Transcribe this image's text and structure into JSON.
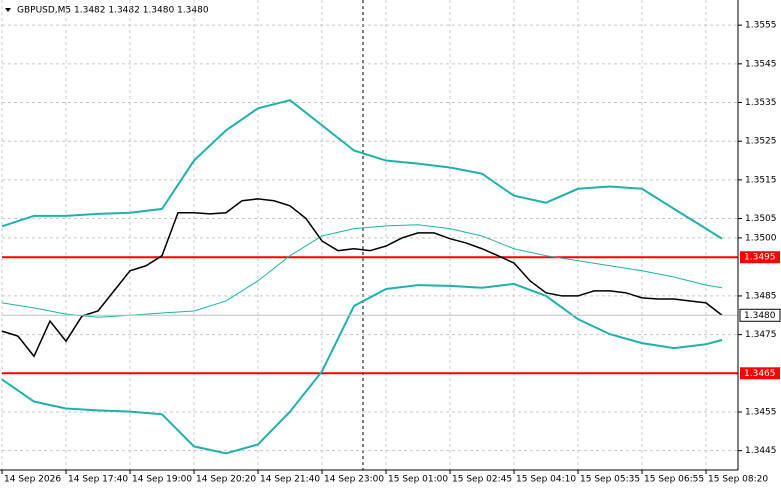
{
  "chart_data": {
    "type": "line",
    "title": "GBPUSD,M5  1.3482 1.3482 1.3480 1.3480",
    "xlim": [
      0,
      230
    ],
    "ylim": [
      1.344,
      1.35615
    ],
    "grid": true,
    "xticks": [
      {
        "value": 0,
        "label": "14 Sep 2026"
      },
      {
        "value": 20,
        "label": "14 Sep 17:40"
      },
      {
        "value": 40,
        "label": "14 Sep 19:00"
      },
      {
        "value": 60,
        "label": "14 Sep 20:20"
      },
      {
        "value": 80,
        "label": "14 Sep 21:40"
      },
      {
        "value": 100,
        "label": "14 Sep 23:00"
      },
      {
        "value": 120,
        "label": "15 Sep 01:00"
      },
      {
        "value": 140,
        "label": "15 Sep 02:45"
      },
      {
        "value": 160,
        "label": "15 Sep 04:10"
      },
      {
        "value": 180,
        "label": "15 Sep 05:35"
      },
      {
        "value": 200,
        "label": "15 Sep 06:55"
      },
      {
        "value": 220,
        "label": "15 Sep 08:20"
      }
    ],
    "yticks": [
      1.3445,
      1.3455,
      1.3475,
      1.3485,
      {
        "value": 1.35,
        "label": "1.3500"
      },
      1.3505,
      1.3515,
      1.3525,
      1.3535,
      1.3545,
      1.3555
    ],
    "levels": [
      {
        "value": 1.3495,
        "label": "1.3495",
        "color": "#ff0000"
      },
      {
        "value": 1.3465,
        "label": "1.3465",
        "color": "#ff0000"
      }
    ],
    "last_price": {
      "value": 1.348,
      "label": "1.3480"
    },
    "series": [
      {
        "color": "#20b2aa",
        "width": 2,
        "x": [
          0,
          10,
          20,
          30,
          40,
          50,
          60,
          70,
          80,
          90,
          100,
          110,
          120,
          130,
          140,
          150,
          160,
          170,
          180,
          190,
          200,
          210,
          220,
          225
        ],
        "values": [
          1.3503,
          1.35057,
          1.35057,
          1.35062,
          1.35065,
          1.35075,
          1.352,
          1.35278,
          1.35335,
          1.35356,
          1.35291,
          1.35226,
          1.352,
          1.35192,
          1.35182,
          1.35166,
          1.35109,
          1.35091,
          1.35127,
          1.35133,
          1.35127,
          1.35075,
          1.35024,
          1.34998
        ]
      },
      {
        "color": "#20b2aa",
        "width": 1,
        "x": [
          0,
          10,
          20,
          30,
          40,
          50,
          60,
          70,
          80,
          90,
          100,
          110,
          120,
          130,
          140,
          150,
          160,
          170,
          180,
          190,
          200,
          210,
          220,
          225
        ],
        "values": [
          1.34832,
          1.34819,
          1.34803,
          1.34795,
          1.348,
          1.34806,
          1.34811,
          1.34837,
          1.34889,
          1.34954,
          1.35005,
          1.35024,
          1.35031,
          1.35034,
          1.35024,
          1.35005,
          1.34972,
          1.34954,
          1.34941,
          1.34928,
          1.34915,
          1.34899,
          1.34878,
          1.34871
        ]
      },
      {
        "color": "#20b2aa",
        "width": 2,
        "x": [
          0,
          10,
          20,
          30,
          40,
          50,
          60,
          70,
          80,
          90,
          100,
          110,
          120,
          130,
          140,
          150,
          160,
          170,
          180,
          190,
          200,
          210,
          220,
          225
        ],
        "values": [
          1.34634,
          1.34577,
          1.34559,
          1.34554,
          1.34551,
          1.34544,
          1.34461,
          1.34443,
          1.34466,
          1.34551,
          1.34655,
          1.34824,
          1.34868,
          1.34878,
          1.34876,
          1.34871,
          1.34881,
          1.3485,
          1.3479,
          1.34751,
          1.34728,
          1.34715,
          1.34725,
          1.34736
        ]
      },
      {
        "color": "#000000",
        "width": 1.5,
        "x": [
          0,
          5,
          10,
          15,
          20,
          25,
          30,
          35,
          40,
          45,
          50,
          55,
          60,
          65,
          70,
          75,
          80,
          85,
          90,
          95,
          100,
          105,
          110,
          115,
          120,
          125,
          130,
          135,
          140,
          145,
          150,
          155,
          160,
          165,
          170,
          175,
          180,
          185,
          190,
          195,
          200,
          205,
          210,
          215,
          220,
          225
        ],
        "values": [
          1.34759,
          1.34746,
          1.34694,
          1.34785,
          1.34733,
          1.34798,
          1.34811,
          1.34863,
          1.34915,
          1.34928,
          1.34954,
          1.35065,
          1.35065,
          1.35062,
          1.35065,
          1.35096,
          1.35101,
          1.35096,
          1.35083,
          1.3505,
          1.34992,
          1.34967,
          1.34972,
          1.34967,
          1.34979,
          1.35,
          1.35013,
          1.35013,
          1.34998,
          1.34987,
          1.34972,
          1.34954,
          1.34935,
          1.34889,
          1.34858,
          1.3485,
          1.3485,
          1.34863,
          1.34863,
          1.34858,
          1.34845,
          1.34842,
          1.34842,
          1.34837,
          1.34832,
          1.348
        ]
      }
    ]
  }
}
